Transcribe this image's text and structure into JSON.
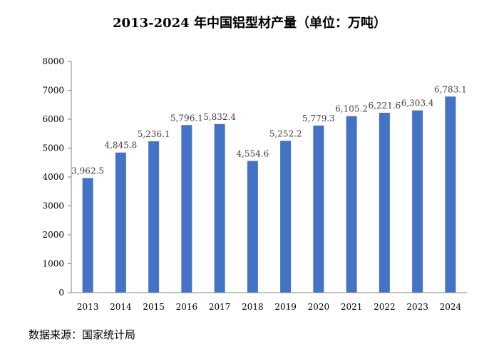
{
  "title": "2013-2024 年中国铝型材产量（单位：万吨）",
  "source": "数据来源：国家统计局",
  "colors": {
    "bar": "#4472C4",
    "axis": "#808080",
    "text": "#404040"
  },
  "chart_data": {
    "type": "bar",
    "title": "2013-2024 年中国铝型材产量（单位：万吨）",
    "categories": [
      "2013",
      "2014",
      "2015",
      "2016",
      "2017",
      "2018",
      "2019",
      "2020",
      "2021",
      "2022",
      "2023",
      "2024"
    ],
    "series": [
      {
        "values": [
          3962.5,
          4845.8,
          5236.1,
          5796.1,
          5832.4,
          4554.6,
          5252.2,
          5779.3,
          6105.2,
          6221.6,
          6303.4,
          6783.1
        ]
      }
    ],
    "data_labels": [
      "3,962.5",
      "4,845.8",
      "5,236.1",
      "5,796.1",
      "5,832.4",
      "4,554.6",
      "5,252.2",
      "5,779.3",
      "6,105.2",
      "6,221.6",
      "6,303.4",
      "6,783.1"
    ],
    "yticks": [
      "0",
      "1000",
      "2000",
      "3000",
      "4000",
      "5000",
      "6000",
      "7000",
      "8000"
    ],
    "ylim": [
      0,
      8000
    ],
    "grid": false,
    "legend": "none"
  }
}
